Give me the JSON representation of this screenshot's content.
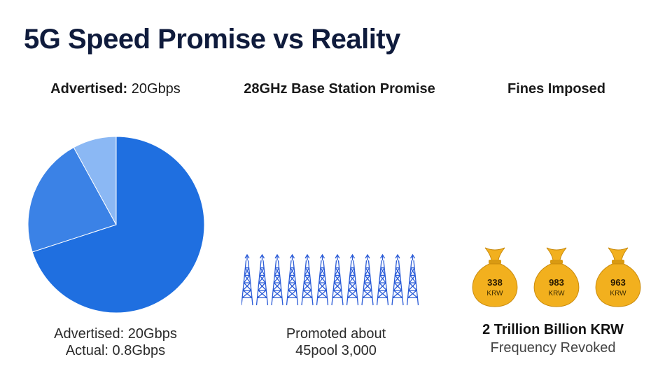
{
  "title": "5G Speed Promise vs Reality",
  "panels": {
    "speed": {
      "heading_bold": "Advertised:",
      "heading_light": " 20Gbps",
      "caption_line1": "Advertised: 20Gbps",
      "caption_line2": "Actual: 0.8Gbps"
    },
    "stations": {
      "heading": "28GHz Base Station Promise",
      "caption_line1": "Promoted about",
      "caption_line2": "45pool 3,000"
    },
    "fines": {
      "heading": "Fines Imposed",
      "caption_line1": "2 Trillion Billion KRW",
      "caption_line2": "Frequency Revoked",
      "bags": [
        {
          "num": "338",
          "unit": "KRW"
        },
        {
          "num": "983",
          "unit": "KRW"
        },
        {
          "num": "963",
          "unit": "KRW"
        }
      ]
    }
  },
  "chart_data": [
    {
      "type": "pie",
      "slices": [
        {
          "value": 0.7,
          "color": "#1f6fe0"
        },
        {
          "value": 0.22,
          "color": "#3b82e6"
        },
        {
          "value": 0.08,
          "color": "#8bb8f4"
        }
      ]
    },
    {
      "type": "pictogram",
      "icon": "transmission-tower-icon",
      "count": 12,
      "color": "#2a5bd7"
    },
    {
      "type": "pictogram",
      "icon": "money-bag-icon",
      "count": 3,
      "color": "#f2b01e"
    }
  ],
  "colors": {
    "title": "#0f1b3c",
    "pie_main": "#1f6fe0",
    "tower": "#2a5bd7",
    "bag": "#f2b01e"
  }
}
